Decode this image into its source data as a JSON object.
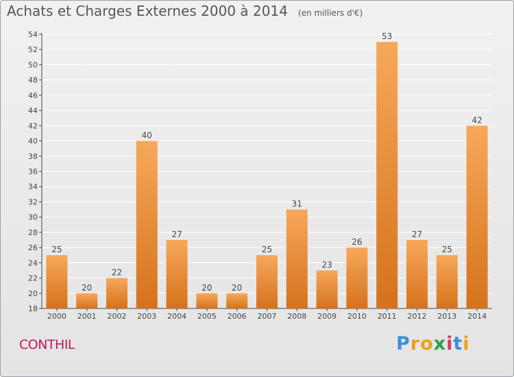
{
  "header": {
    "title": "Achats et Charges Externes 2000 à 2014",
    "subtitle": "(en milliers d'€)"
  },
  "footer": {
    "town": "CONTHIL",
    "logo": "Proxiti"
  },
  "colors": {
    "bar_light": "#f7a85a",
    "bar_dark": "#d5721c",
    "grid": "#ffffff",
    "axis": "#444444",
    "text": "#444444"
  },
  "chart_data": {
    "type": "bar",
    "categories": [
      "2000",
      "2001",
      "2002",
      "2003",
      "2004",
      "2005",
      "2006",
      "2007",
      "2008",
      "2009",
      "2010",
      "2011",
      "2012",
      "2013",
      "2014"
    ],
    "values": [
      25,
      20,
      22,
      40,
      27,
      20,
      20,
      25,
      31,
      23,
      26,
      53,
      27,
      25,
      42
    ],
    "title": "Achats et Charges Externes 2000 à 2014",
    "subtitle": "(en milliers d'€)",
    "ylim": [
      18,
      54
    ],
    "yticks": [
      18,
      20,
      22,
      24,
      26,
      28,
      30,
      32,
      34,
      36,
      38,
      40,
      42,
      44,
      46,
      48,
      50,
      52,
      54
    ],
    "grid": true,
    "legend": "none",
    "data_labels": true
  }
}
